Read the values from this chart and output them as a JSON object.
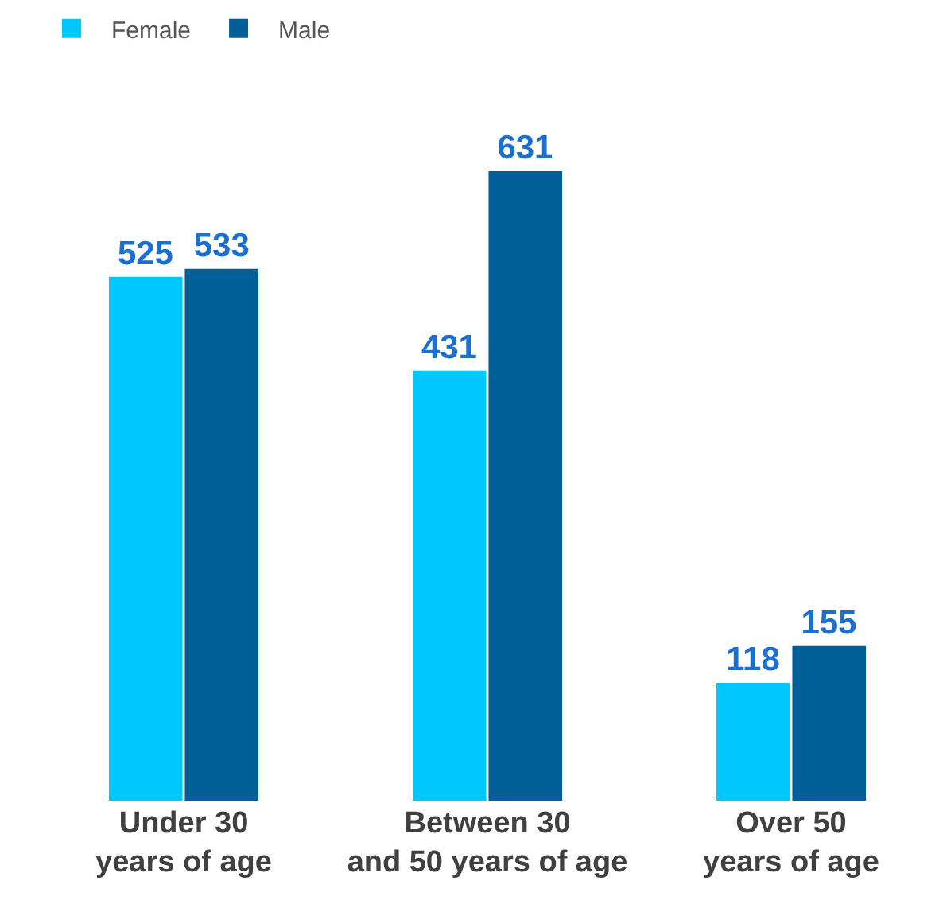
{
  "chart_data": {
    "type": "bar",
    "categories": [
      "Under 30\nyears of age",
      "Between 30\nand 50 years of age",
      "Over 50\nyears of age"
    ],
    "series": [
      {
        "name": "Female",
        "color": "#00c8ff",
        "values": [
          525,
          431,
          118
        ]
      },
      {
        "name": "Male",
        "color": "#005f96",
        "values": [
          533,
          631,
          155
        ]
      }
    ],
    "data_labels": true,
    "legend": "top left"
  }
}
